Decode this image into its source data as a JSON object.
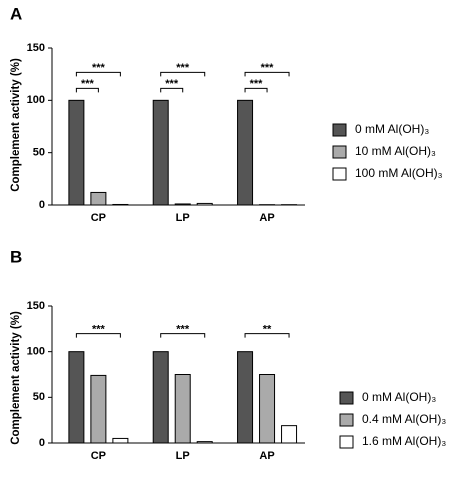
{
  "chart_data": [
    {
      "type": "bar",
      "label": "A",
      "y_label": "Complement activity (%)",
      "categories": [
        "CP",
        "LP",
        "AP"
      ],
      "series": [
        {
          "name": "0 mM Al(OH)₃",
          "color": "#555555",
          "values": [
            100,
            100,
            100
          ]
        },
        {
          "name": "10 mM Al(OH)₃",
          "color": "#aaaaaa",
          "values": [
            12,
            1,
            0.3
          ]
        },
        {
          "name": "100 mM Al(OH)₃",
          "color": "#ffffff",
          "values": [
            0.5,
            1.5,
            0.3
          ]
        }
      ],
      "significance": [
        [
          "***",
          "***"
        ],
        [
          "***",
          "***"
        ],
        [
          "***",
          "***"
        ]
      ],
      "ylim": [
        0,
        150
      ],
      "yticks": [
        0,
        50,
        100,
        150
      ]
    },
    {
      "type": "bar",
      "label": "B",
      "y_label": "Complement activity (%)",
      "categories": [
        "CP",
        "LP",
        "AP"
      ],
      "series": [
        {
          "name": "0 mM Al(OH)₃",
          "color": "#555555",
          "values": [
            100,
            100,
            100
          ]
        },
        {
          "name": "0.4 mM Al(OH)₃",
          "color": "#aaaaaa",
          "values": [
            74,
            75,
            75
          ]
        },
        {
          "name": "1.6 mM Al(OH)₃",
          "color": "#ffffff",
          "values": [
            5,
            1.5,
            19
          ]
        }
      ],
      "significance": [
        [
          "***"
        ],
        [
          "***"
        ],
        [
          "**"
        ]
      ],
      "ylim": [
        0,
        150
      ],
      "yticks": [
        0,
        50,
        100,
        150
      ]
    }
  ]
}
